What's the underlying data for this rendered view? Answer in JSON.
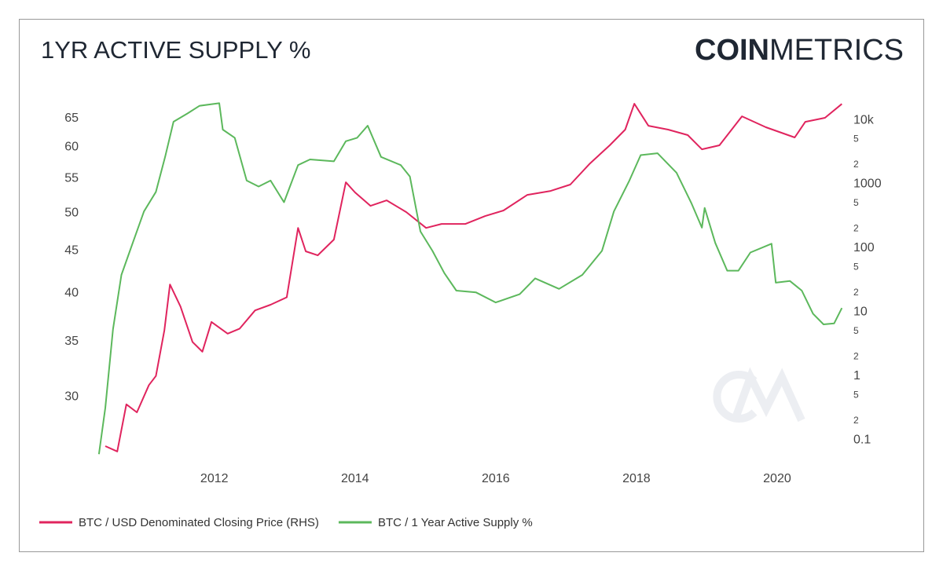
{
  "chart_data": {
    "type": "line",
    "title": "1YR ACTIVE SUPPLY %",
    "brand": [
      "COIN",
      "METRICS"
    ],
    "xlim": [
      2010.35,
      2020.95
    ],
    "xticks": [
      2012,
      2014,
      2016,
      2018,
      2020
    ],
    "ylim": [
      25.5,
      68
    ],
    "ylog": true,
    "yticks": [
      30,
      35,
      40,
      45,
      50,
      55,
      60,
      65
    ],
    "y2lim": [
      0.057,
      19200
    ],
    "y2log": true,
    "y2ticks": [
      0.1,
      {
        "value": 0.2,
        "label": "2"
      },
      {
        "value": 0.5,
        "label": "5"
      },
      1,
      {
        "value": 2,
        "label": "2"
      },
      {
        "value": 5,
        "label": "5"
      },
      10,
      {
        "value": 20,
        "label": "2"
      },
      {
        "value": 50,
        "label": "5"
      },
      100,
      {
        "value": 200,
        "label": "2"
      },
      {
        "value": 500,
        "label": "5"
      },
      1000,
      {
        "value": 2000,
        "label": "2"
      },
      {
        "value": 5000,
        "label": "5"
      },
      {
        "value": 10000,
        "label": "10k"
      }
    ],
    "series": [
      {
        "name": "BTC / USD Denominated Closing Price (RHS)",
        "color": "#e0245e",
        "axis": "y2",
        "x": [
          2010.45,
          2010.62,
          2010.75,
          2010.9,
          2011.07,
          2011.17,
          2011.29,
          2011.37,
          2011.52,
          2011.69,
          2011.83,
          2011.96,
          2012.19,
          2012.36,
          2012.58,
          2012.8,
          2013.03,
          2013.19,
          2013.3,
          2013.47,
          2013.7,
          2013.87,
          2014.0,
          2014.22,
          2014.45,
          2014.73,
          2015.01,
          2015.23,
          2015.57,
          2015.85,
          2016.11,
          2016.45,
          2016.78,
          2017.06,
          2017.34,
          2017.62,
          2017.84,
          2017.97,
          2018.17,
          2018.45,
          2018.73,
          2018.93,
          2019.18,
          2019.5,
          2019.84,
          2020.25,
          2020.4,
          2020.68,
          2020.92
        ],
        "values": [
          0.08,
          0.066,
          0.36,
          0.27,
          0.72,
          1.0,
          5.2,
          27,
          12.2,
          3.4,
          2.4,
          7.0,
          4.6,
          5.5,
          10.6,
          13,
          17,
          207,
          89,
          77,
          136,
          1070,
          742,
          458,
          558,
          365,
          207,
          239,
          239,
          317,
          387,
          681,
          784,
          984,
          2110,
          4050,
          7130,
          18100,
          8200,
          7130,
          5850,
          3510,
          4050,
          11500,
          7760,
          5370,
          9450,
          10900,
          18000
        ]
      },
      {
        "name": "BTC / 1 Year Active Supply %",
        "color": "#5cb85c",
        "axis": "y",
        "x": [
          2010.36,
          2010.45,
          2010.56,
          2010.68,
          2010.84,
          2011.0,
          2011.17,
          2011.3,
          2011.42,
          2011.62,
          2011.79,
          2012.07,
          2012.12,
          2012.29,
          2012.46,
          2012.63,
          2012.8,
          2012.99,
          2013.19,
          2013.36,
          2013.7,
          2013.87,
          2014.03,
          2014.18,
          2014.37,
          2014.65,
          2014.78,
          2014.93,
          2015.1,
          2015.27,
          2015.44,
          2015.72,
          2016.0,
          2016.34,
          2016.56,
          2016.9,
          2017.23,
          2017.51,
          2017.68,
          2017.9,
          2018.06,
          2018.3,
          2018.57,
          2018.78,
          2018.93,
          2018.97,
          2019.12,
          2019.29,
          2019.45,
          2019.62,
          2019.92,
          2019.98,
          2020.18,
          2020.35,
          2020.51,
          2020.66,
          2020.81,
          2020.92
        ],
        "values": [
          25.6,
          29.1,
          36.2,
          42.1,
          46.0,
          50.2,
          53.0,
          58.4,
          64.4,
          65.9,
          67.3,
          67.8,
          63.0,
          61.6,
          54.7,
          53.8,
          54.7,
          51.5,
          57.1,
          58.0,
          57.7,
          61.0,
          61.6,
          63.7,
          58.4,
          57.1,
          55.3,
          47.5,
          45.0,
          42.3,
          40.3,
          40.1,
          39.0,
          39.9,
          41.7,
          40.5,
          42.1,
          45.0,
          50.2,
          54.7,
          58.7,
          59.0,
          55.9,
          51.4,
          48.0,
          50.7,
          46.0,
          42.6,
          42.6,
          44.8,
          45.9,
          41.2,
          41.4,
          40.3,
          37.8,
          36.7,
          36.8,
          38.4
        ]
      }
    ]
  }
}
